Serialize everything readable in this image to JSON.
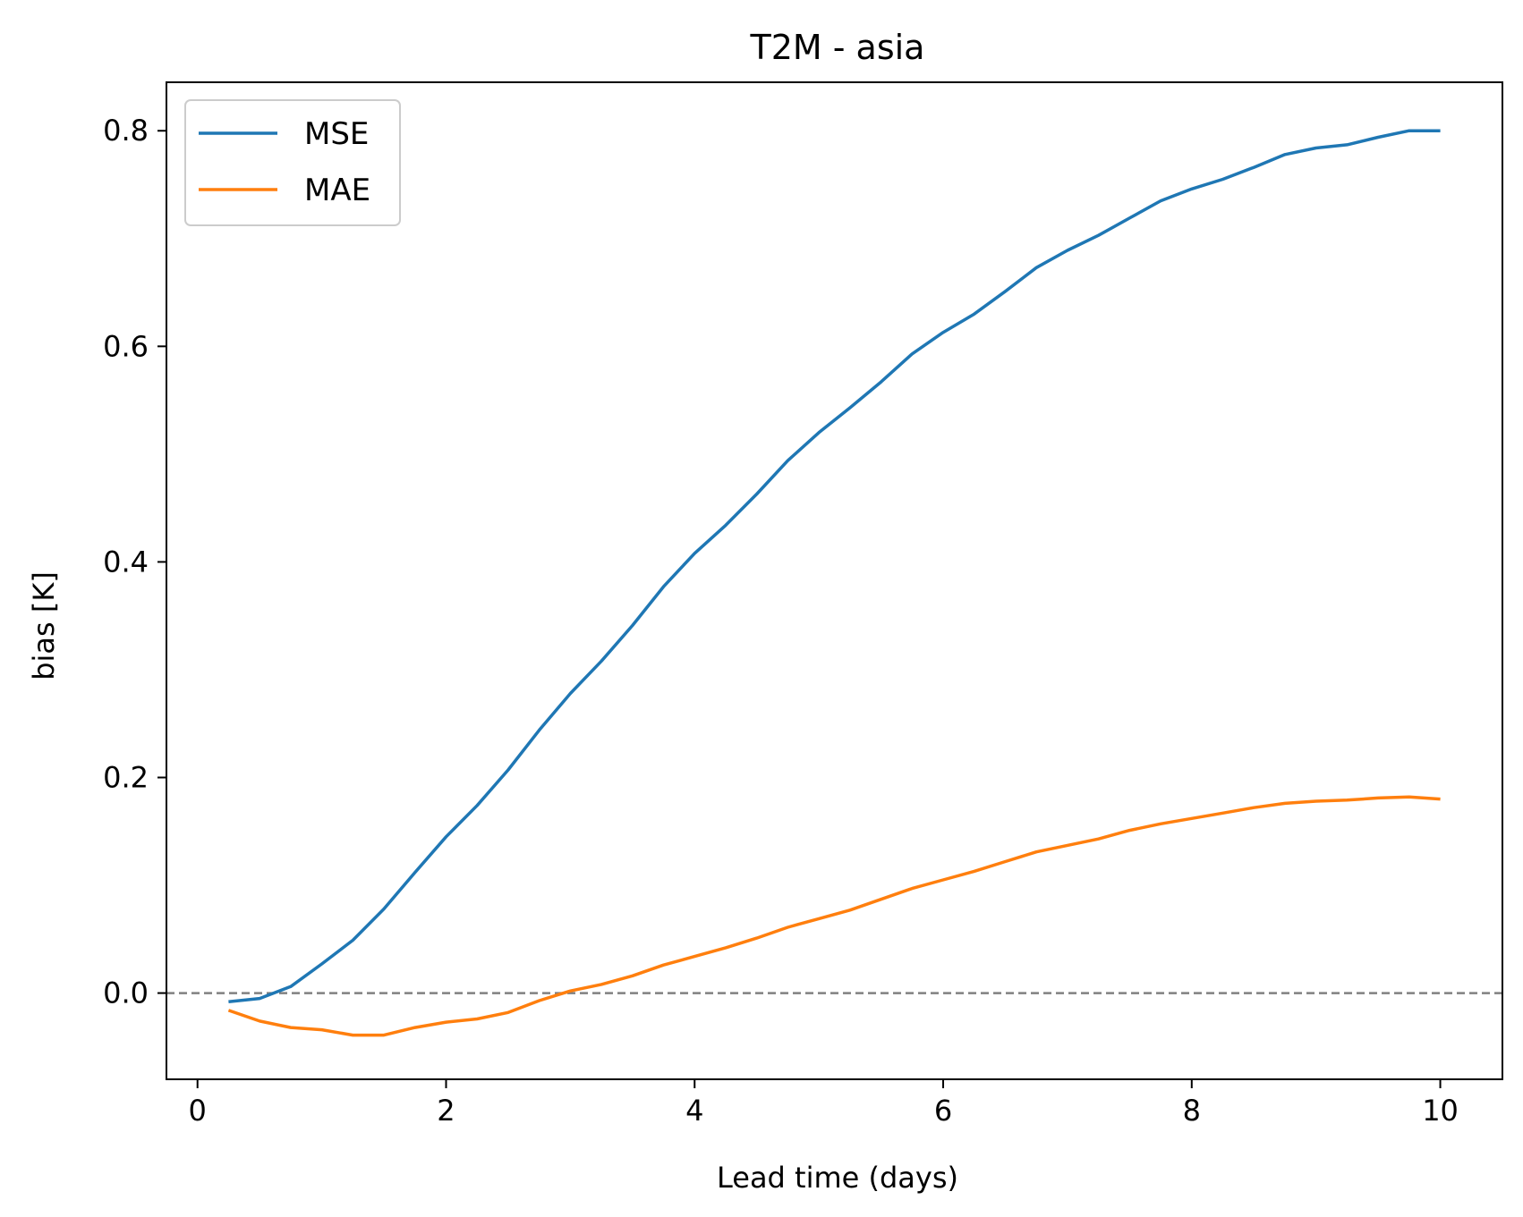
{
  "chart_data": {
    "type": "line",
    "title": "T2M - asia",
    "xlabel": "Lead time (days)",
    "ylabel": "bias [K]",
    "xlim": [
      -0.25,
      10.5
    ],
    "ylim": [
      -0.08,
      0.845
    ],
    "xticks": [
      0,
      2,
      4,
      6,
      8,
      10
    ],
    "xtick_labels": [
      "0",
      "2",
      "4",
      "6",
      "8",
      "10"
    ],
    "yticks": [
      0.0,
      0.2,
      0.4,
      0.6,
      0.8
    ],
    "ytick_labels": [
      "0.0",
      "0.2",
      "0.4",
      "0.6",
      "0.8"
    ],
    "grid": false,
    "legend_position": "top-left",
    "reference_line": {
      "y": 0.0,
      "style": "dashed",
      "color": "#808080"
    },
    "x": [
      0.25,
      0.5,
      0.75,
      1.0,
      1.25,
      1.5,
      1.75,
      2.0,
      2.25,
      2.5,
      2.75,
      3.0,
      3.25,
      3.5,
      3.75,
      4.0,
      4.25,
      4.5,
      4.75,
      5.0,
      5.25,
      5.5,
      5.75,
      6.0,
      6.25,
      6.5,
      6.75,
      7.0,
      7.25,
      7.5,
      7.75,
      8.0,
      8.25,
      8.5,
      8.75,
      9.0,
      9.25,
      9.5,
      9.75,
      10.0
    ],
    "series": [
      {
        "name": "MSE",
        "color": "#1f77b4",
        "values": [
          -0.008,
          -0.005,
          0.006,
          0.027,
          0.049,
          0.078,
          0.112,
          0.145,
          0.174,
          0.207,
          0.244,
          0.278,
          0.308,
          0.341,
          0.377,
          0.408,
          0.434,
          0.463,
          0.494,
          0.52,
          0.543,
          0.567,
          0.593,
          0.613,
          0.63,
          0.651,
          0.673,
          0.689,
          0.703,
          0.719,
          0.735,
          0.746,
          0.755,
          0.766,
          0.778,
          0.784,
          0.787,
          0.794,
          0.8,
          0.8
        ]
      },
      {
        "name": "MAE",
        "color": "#ff7f0e",
        "values": [
          -0.016,
          -0.026,
          -0.032,
          -0.034,
          -0.039,
          -0.039,
          -0.032,
          -0.027,
          -0.024,
          -0.018,
          -0.007,
          0.002,
          0.008,
          0.016,
          0.026,
          0.034,
          0.042,
          0.051,
          0.061,
          0.069,
          0.077,
          0.087,
          0.097,
          0.105,
          0.113,
          0.122,
          0.131,
          0.137,
          0.143,
          0.151,
          0.157,
          0.162,
          0.167,
          0.172,
          0.176,
          0.178,
          0.179,
          0.181,
          0.182,
          0.18
        ]
      }
    ]
  }
}
